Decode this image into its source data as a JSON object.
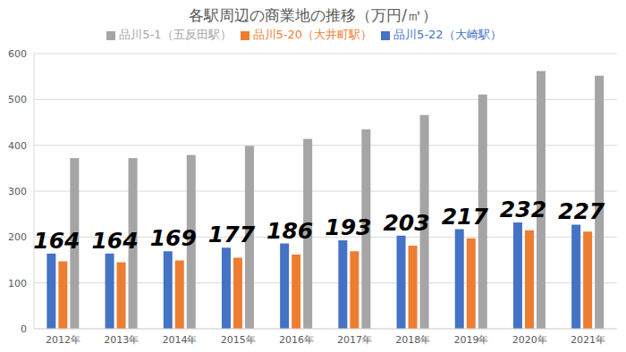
{
  "chart_data": {
    "type": "bar",
    "title": "各駅周辺の商業地の推移（万円/㎡）",
    "categories": [
      "2012年",
      "2013年",
      "2014年",
      "2015年",
      "2016年",
      "2017年",
      "2018年",
      "2019年",
      "2020年",
      "2021年"
    ],
    "series": [
      {
        "name": "品川5-22（大崎駅）",
        "color": "#4472c4",
        "data_labels": true,
        "values": [
          164,
          164,
          169,
          177,
          186,
          193,
          203,
          217,
          232,
          227
        ]
      },
      {
        "name": "品川5-20（大井町駅）",
        "color": "#ed7d31",
        "values": [
          147,
          145,
          149,
          155,
          162,
          169,
          181,
          197,
          215,
          212
        ]
      },
      {
        "name": "品川5-1（五反田駅）",
        "color": "#a5a5a5",
        "values": [
          372,
          372,
          379,
          399,
          414,
          435,
          466,
          511,
          562,
          552
        ]
      }
    ],
    "ylim": [
      0,
      600
    ],
    "yticks": [
      0,
      100,
      200,
      300,
      400,
      500,
      600
    ],
    "grid": true,
    "legend": "top"
  }
}
